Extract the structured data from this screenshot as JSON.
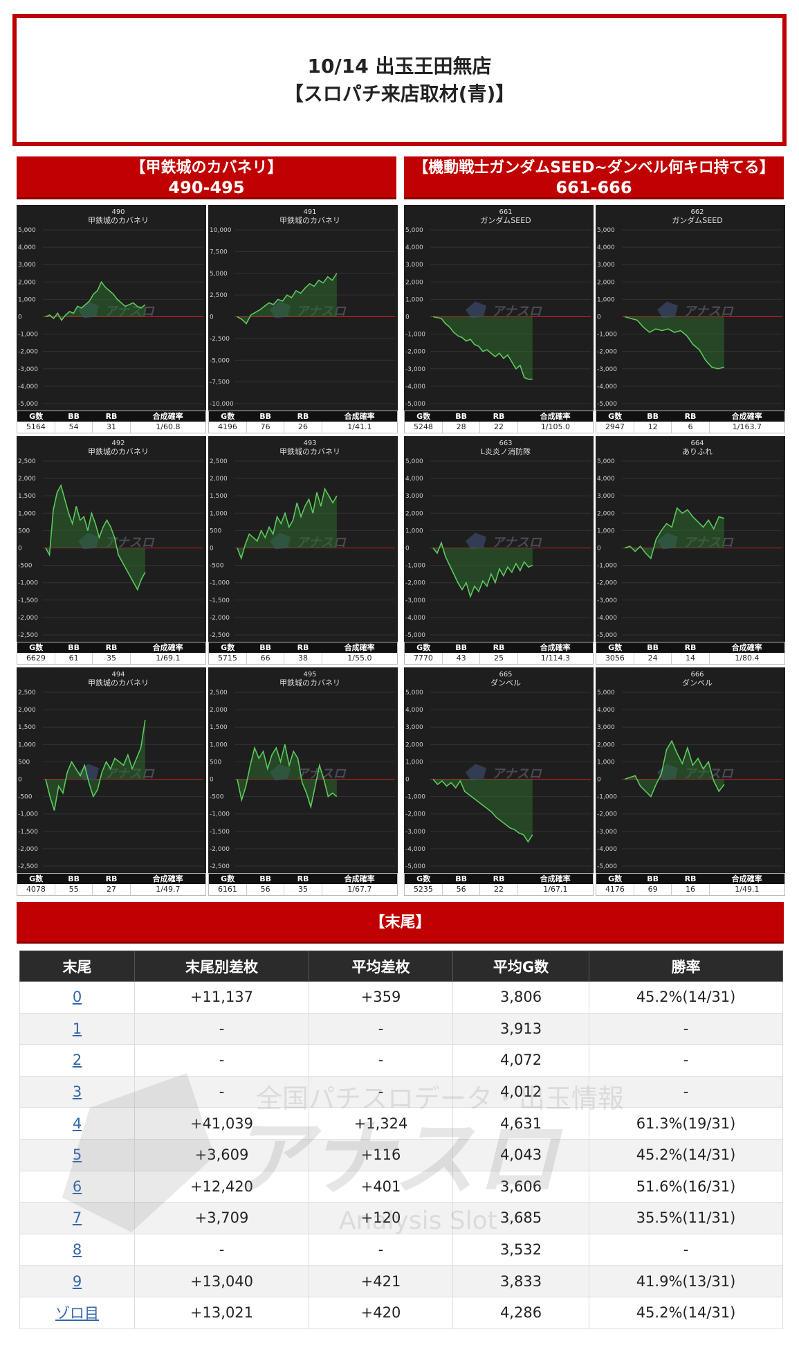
{
  "header": {
    "line1": "10/14 出玉王田無店",
    "line2": "【スロパチ来店取材(青)】"
  },
  "sections": [
    {
      "title": "【甲鉄城のカバネリ】",
      "range": "490-495"
    },
    {
      "title": "【機動戦士ガンダムSEED~ダンベル何キロ持てる】",
      "range": "661-666"
    }
  ],
  "watermark": {
    "brand": "アナスロ",
    "sub": "Analysis Slot",
    "tagline": "全国パチスロデータ・出玉情報"
  },
  "stat_headers": [
    "G数",
    "BB",
    "RB",
    "合成確率"
  ],
  "machines": [
    {
      "id": "490",
      "name": "甲鉄城のカバネリ",
      "g": "5164",
      "bb": "54",
      "rb": "31",
      "rate": "1/60.8",
      "yticks": [
        "5,000",
        "4,000",
        "3,000",
        "2,000",
        "1,000",
        "0",
        "-1,000",
        "-2,000",
        "-3,000",
        "-4,000",
        "-5,000"
      ],
      "ymax": 5000,
      "series": [
        0,
        100,
        -100,
        200,
        -200,
        100,
        300,
        200,
        600,
        500,
        700,
        900,
        1300,
        1500,
        2000,
        1700,
        1500,
        1300,
        1000,
        800,
        600,
        700,
        800,
        600,
        500,
        700
      ]
    },
    {
      "id": "491",
      "name": "甲鉄城のカバネリ",
      "g": "4196",
      "bb": "76",
      "rb": "26",
      "rate": "1/41.1",
      "yticks": [
        "10,000",
        "7,500",
        "5,000",
        "2,500",
        "0",
        "-2,500",
        "-5,000",
        "-7,500",
        "-10,000"
      ],
      "ymax": 10000,
      "series": [
        0,
        -300,
        -800,
        200,
        500,
        800,
        1200,
        1600,
        1400,
        2000,
        1800,
        2500,
        2200,
        3000,
        2700,
        3300,
        3800,
        3500,
        4200,
        3900,
        4600,
        4200,
        5000
      ]
    },
    {
      "id": "661",
      "name": "ガンダムSEED",
      "g": "5248",
      "bb": "28",
      "rb": "22",
      "rate": "1/105.0",
      "yticks": [
        "5,000",
        "4,000",
        "3,000",
        "2,000",
        "1,000",
        "0",
        "-1,000",
        "-2,000",
        "-3,000",
        "-4,000",
        "-5,000"
      ],
      "ymax": 5000,
      "series": [
        0,
        -50,
        -100,
        -400,
        -600,
        -900,
        -1100,
        -1200,
        -1400,
        -1300,
        -1600,
        -1700,
        -2000,
        -1900,
        -2100,
        -2300,
        -2100,
        -2400,
        -2200,
        -2600,
        -3000,
        -2800,
        -3500,
        -3600,
        -3600
      ]
    },
    {
      "id": "662",
      "name": "ガンダムSEED",
      "g": "2947",
      "bb": "12",
      "rb": "6",
      "rate": "1/163.7",
      "yticks": [
        "5,000",
        "4,000",
        "3,000",
        "2,000",
        "1,000",
        "0",
        "-1,000",
        "-2,000",
        "-3,000",
        "-4,000",
        "-5,000"
      ],
      "ymax": 5000,
      "series": [
        0,
        -100,
        -200,
        -600,
        -900,
        -700,
        -800,
        -700,
        -900,
        -800,
        -1100,
        -1600,
        -1900,
        -2500,
        -2900,
        -3000,
        -2900
      ]
    },
    {
      "id": "492",
      "name": "甲鉄城のカバネリ",
      "g": "6629",
      "bb": "61",
      "rb": "35",
      "rate": "1/69.1",
      "yticks": [
        "2,500",
        "2,000",
        "1,500",
        "1,000",
        "500",
        "0",
        "-500",
        "-1,000",
        "-1,500",
        "-2,000",
        "-2,500"
      ],
      "ymax": 2500,
      "series": [
        0,
        -200,
        1100,
        1600,
        1800,
        1400,
        1000,
        700,
        1200,
        800,
        900,
        500,
        1000,
        700,
        300,
        600,
        800,
        600,
        300,
        -200,
        -400,
        -600,
        -800,
        -1000,
        -1200,
        -900,
        -700
      ]
    },
    {
      "id": "493",
      "name": "甲鉄城のカバネリ",
      "g": "5715",
      "bb": "66",
      "rb": "38",
      "rate": "1/55.0",
      "yticks": [
        "2,500",
        "2,000",
        "1,500",
        "1,000",
        "500",
        "0",
        "-500",
        "-1,000",
        "-1,500",
        "-2,000",
        "-2,500"
      ],
      "ymax": 2500,
      "series": [
        0,
        -300,
        100,
        400,
        300,
        200,
        500,
        300,
        600,
        400,
        900,
        700,
        1000,
        600,
        800,
        1300,
        900,
        1200,
        1400,
        1000,
        1600,
        1200,
        1700,
        1500,
        1300,
        1500
      ]
    },
    {
      "id": "663",
      "name": "L炎炎ノ消防隊",
      "g": "7770",
      "bb": "43",
      "rb": "25",
      "rate": "1/114.3",
      "yticks": [
        "5,000",
        "4,000",
        "3,000",
        "2,000",
        "1,000",
        "0",
        "-1,000",
        "-2,000",
        "-3,000",
        "-4,000",
        "-5,000"
      ],
      "ymax": 5000,
      "series": [
        0,
        -300,
        300,
        -500,
        -1000,
        -1500,
        -2000,
        -2400,
        -2000,
        -2800,
        -2200,
        -2500,
        -1900,
        -2200,
        -1500,
        -2000,
        -1200,
        -1600,
        -1100,
        -1400,
        -900,
        -1300,
        -800,
        -1100,
        -1000
      ]
    },
    {
      "id": "664",
      "name": "ありふれ",
      "g": "3056",
      "bb": "24",
      "rb": "14",
      "rate": "1/80.4",
      "yticks": [
        "5,000",
        "4,000",
        "3,000",
        "2,000",
        "1,000",
        "0",
        "-1,000",
        "-2,000",
        "-3,000",
        "-4,000",
        "-5,000"
      ],
      "ymax": 5000,
      "series": [
        0,
        100,
        -200,
        100,
        -300,
        -600,
        500,
        1000,
        1400,
        1200,
        2300,
        2000,
        2200,
        1800,
        1500,
        1200,
        1600,
        1100,
        1800,
        1700
      ]
    },
    {
      "id": "494",
      "name": "甲鉄城のカバネリ",
      "g": "4078",
      "bb": "55",
      "rb": "27",
      "rate": "1/49.7",
      "yticks": [
        "2,500",
        "2,000",
        "1,500",
        "1,000",
        "500",
        "0",
        "-500",
        "-1,000",
        "-1,500",
        "-2,000",
        "-2,500"
      ],
      "ymax": 2500,
      "series": [
        0,
        -500,
        -900,
        -200,
        -400,
        200,
        500,
        300,
        100,
        400,
        -100,
        -500,
        -300,
        200,
        500,
        300,
        600,
        500,
        400,
        700,
        300,
        600,
        900,
        1700
      ]
    },
    {
      "id": "495",
      "name": "甲鉄城のカバネリ",
      "g": "6161",
      "bb": "56",
      "rb": "35",
      "rate": "1/67.7",
      "yticks": [
        "2,500",
        "2,000",
        "1,500",
        "1,000",
        "500",
        "0",
        "-500",
        "-1,000",
        "-1,500",
        "-2,000",
        "-2,500"
      ],
      "ymax": 2500,
      "series": [
        0,
        -600,
        -200,
        400,
        900,
        600,
        800,
        300,
        700,
        900,
        500,
        1000,
        400,
        800,
        600,
        -100,
        -400,
        -800,
        -200,
        400,
        0,
        -500,
        -400,
        -500
      ]
    },
    {
      "id": "665",
      "name": "ダンベル",
      "g": "5235",
      "bb": "56",
      "rb": "22",
      "rate": "1/67.1",
      "yticks": [
        "5,000",
        "4,000",
        "3,000",
        "2,000",
        "1,000",
        "0",
        "-1,000",
        "-2,000",
        "-3,000",
        "-4,000",
        "-5,000"
      ],
      "ymax": 5000,
      "series": [
        0,
        -300,
        -100,
        -400,
        -200,
        -500,
        -100,
        -700,
        -900,
        -1100,
        -1300,
        -1500,
        -1700,
        -1900,
        -2200,
        -2400,
        -2600,
        -2800,
        -2900,
        -3100,
        -3200,
        -3600,
        -3200
      ]
    },
    {
      "id": "666",
      "name": "ダンベル",
      "g": "4176",
      "bb": "69",
      "rb": "16",
      "rate": "1/49.1",
      "yticks": [
        "5,000",
        "4,000",
        "3,000",
        "2,000",
        "1,000",
        "0",
        "-1,000",
        "-2,000",
        "-3,000",
        "-4,000",
        "-5,000"
      ],
      "ymax": 5000,
      "series": [
        0,
        100,
        200,
        -400,
        -700,
        -1000,
        -300,
        300,
        1700,
        2200,
        1500,
        900,
        1800,
        800,
        1200,
        600,
        1000,
        -100,
        -700,
        -300
      ]
    }
  ],
  "ends_title": "【末尾】",
  "ends_headers": [
    "末尾",
    "末尾別差枚",
    "平均差枚",
    "平均G数",
    "勝率"
  ],
  "ends_rows": [
    [
      "0",
      "+11,137",
      "+359",
      "3,806",
      "45.2%(14/31)"
    ],
    [
      "1",
      "-",
      "-",
      "3,913",
      "-"
    ],
    [
      "2",
      "-",
      "-",
      "4,072",
      "-"
    ],
    [
      "3",
      "-",
      "-",
      "4,012",
      "-"
    ],
    [
      "4",
      "+41,039",
      "+1,324",
      "4,631",
      "61.3%(19/31)"
    ],
    [
      "5",
      "+3,609",
      "+116",
      "4,043",
      "45.2%(14/31)"
    ],
    [
      "6",
      "+12,420",
      "+401",
      "3,606",
      "51.6%(16/31)"
    ],
    [
      "7",
      "+3,709",
      "+120",
      "3,685",
      "35.5%(11/31)"
    ],
    [
      "8",
      "-",
      "-",
      "3,532",
      "-"
    ],
    [
      "9",
      "+13,040",
      "+421",
      "3,833",
      "41.9%(13/31)"
    ],
    [
      "ゾロ目",
      "+13,021",
      "+420",
      "4,286",
      "45.2%(14/31)"
    ]
  ],
  "colors": {
    "accent": "#c00000",
    "line": "#5cc95c",
    "zero": "#cc2222",
    "chart_bg": "#1e1e1e"
  }
}
